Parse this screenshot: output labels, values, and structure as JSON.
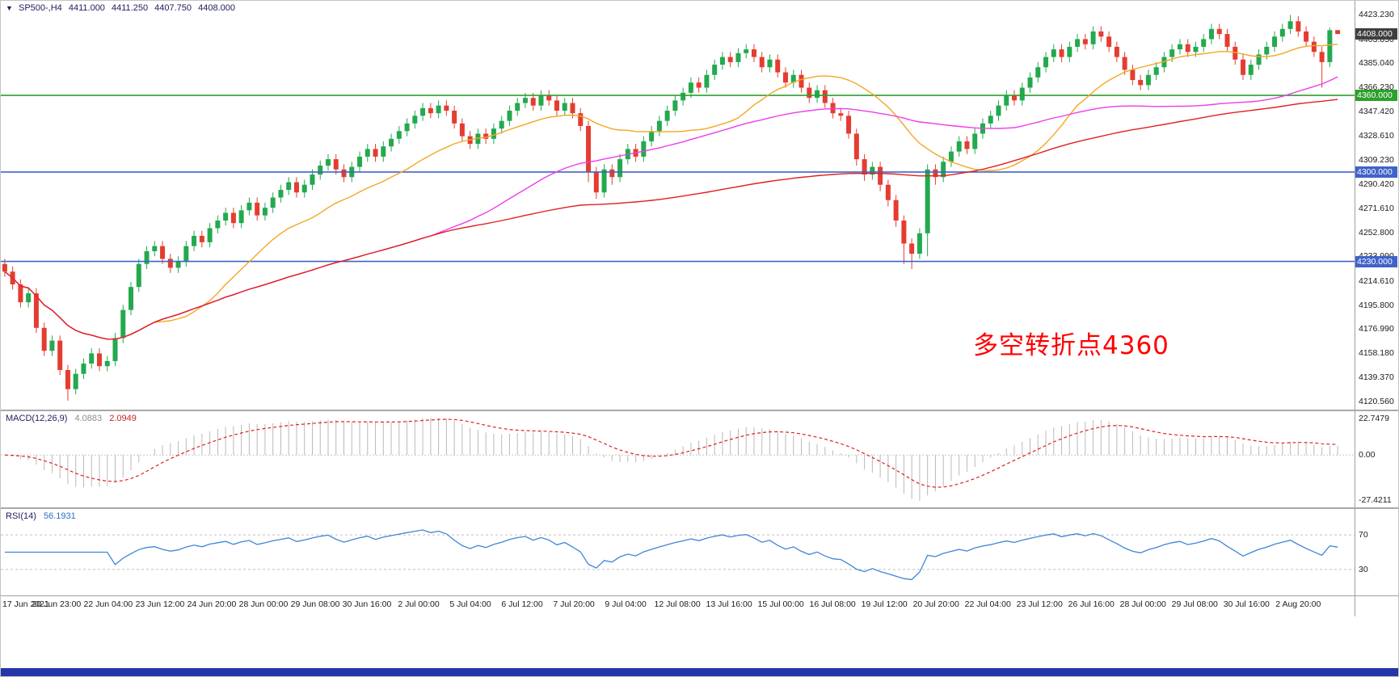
{
  "symbol_bar": {
    "symbol": "SP500-,H4",
    "open": "4411.000",
    "high": "4411.250",
    "low": "4407.750",
    "close": "4408.000"
  },
  "price_axis": {
    "labels": [
      "4423.230",
      "4403.850",
      "4385.040",
      "4366.230",
      "4347.420",
      "4328.610",
      "4309.230",
      "4290.420",
      "4271.610",
      "4252.800",
      "4233.990",
      "4214.610",
      "4195.800",
      "4176.990",
      "4158.180",
      "4139.370",
      "4120.560"
    ],
    "current_badge": {
      "value": "4408.000",
      "price": 4408.0,
      "bg": "#3f3f3f"
    }
  },
  "annotation": {
    "text": "多空转折点4360",
    "color": "#ff0000"
  },
  "macd_panel": {
    "label": "MACD(12,26,9)",
    "value_main": "4.0883",
    "value_signal": "2.0949",
    "axis_top": "22.7479",
    "axis_zero": "0.00",
    "axis_bottom": "-27.4211"
  },
  "rsi_panel": {
    "label": "RSI(14)",
    "value": "56.1931",
    "level_top": "70",
    "level_bottom": "30"
  },
  "time_axis": {
    "labels": [
      "17 Jun 2021",
      "20 Jun 23:00",
      "22 Jun 04:00",
      "23 Jun 12:00",
      "24 Jun 20:00",
      "28 Jun 00:00",
      "29 Jun 08:00",
      "30 Jun 16:00",
      "2 Jul 00:00",
      "5 Jul 04:00",
      "6 Jul 12:00",
      "7 Jul 20:00",
      "9 Jul 04:00",
      "12 Jul 08:00",
      "13 Jul 16:00",
      "15 Jul 00:00",
      "16 Jul 08:00",
      "19 Jul 12:00",
      "20 Jul 20:00",
      "22 Jul 04:00",
      "23 Jul 12:00",
      "26 Jul 16:00",
      "28 Jul 00:00",
      "29 Jul 08:00",
      "30 Jul 16:00",
      "2 Aug 20:00"
    ],
    "bottom_bar_color": "#2337a8"
  },
  "chart_data": {
    "type": "candlestick",
    "symbol": "SP500-",
    "timeframe": "H4",
    "date_range": "17 Jun 2021 - 2 Aug 2021",
    "price_range": [
      4114,
      4434
    ],
    "colors": {
      "up": "#23a94e",
      "down": "#e43d30"
    },
    "horizontal_levels": [
      {
        "price": 4360.0,
        "label": "4360.000",
        "color": "#2ca02c"
      },
      {
        "price": 4300.0,
        "label": "4300.000",
        "color": "#4063c8"
      },
      {
        "price": 4230.0,
        "label": "4230.000",
        "color": "#4063c8"
      }
    ],
    "moving_averages": [
      {
        "period": 20,
        "color": "#f5a623",
        "type": "sma"
      },
      {
        "period": 55,
        "color": "#ec3cec",
        "type": "sma"
      },
      {
        "period": 120,
        "color": "#e02020",
        "type": "sma"
      }
    ],
    "indicators": [
      {
        "type": "MACD",
        "params": [
          12,
          26,
          9
        ],
        "current": [
          4.0883,
          2.0949
        ],
        "axis_range": [
          -27.4211,
          22.7479
        ]
      },
      {
        "type": "RSI",
        "params": [
          14
        ],
        "current": 56.1931,
        "levels": [
          70,
          30
        ]
      }
    ],
    "candles_ohlc": [
      [
        4228,
        4232,
        4218,
        4222
      ],
      [
        4222,
        4226,
        4208,
        4212
      ],
      [
        4212,
        4216,
        4194,
        4198
      ],
      [
        4198,
        4209,
        4194,
        4205
      ],
      [
        4205,
        4209,
        4174,
        4178
      ],
      [
        4178,
        4182,
        4156,
        4160
      ],
      [
        4160,
        4172,
        4156,
        4168
      ],
      [
        4168,
        4172,
        4141,
        4145
      ],
      [
        4145,
        4149,
        4121,
        4130
      ],
      [
        4130,
        4146,
        4126,
        4142
      ],
      [
        4142,
        4154,
        4138,
        4150
      ],
      [
        4150,
        4162,
        4146,
        4158
      ],
      [
        4158,
        4162,
        4144,
        4148
      ],
      [
        4148,
        4156,
        4144,
        4152
      ],
      [
        4152,
        4174,
        4148,
        4170
      ],
      [
        4170,
        4196,
        4166,
        4192
      ],
      [
        4192,
        4214,
        4188,
        4210
      ],
      [
        4210,
        4232,
        4206,
        4228
      ],
      [
        4228,
        4242,
        4224,
        4238
      ],
      [
        4238,
        4246,
        4234,
        4242
      ],
      [
        4242,
        4246,
        4228,
        4232
      ],
      [
        4232,
        4236,
        4221,
        4225
      ],
      [
        4225,
        4234,
        4221,
        4230
      ],
      [
        4230,
        4246,
        4226,
        4242
      ],
      [
        4242,
        4254,
        4238,
        4250
      ],
      [
        4250,
        4254,
        4241,
        4245
      ],
      [
        4245,
        4260,
        4241,
        4256
      ],
      [
        4256,
        4266,
        4252,
        4262
      ],
      [
        4262,
        4272,
        4258,
        4268
      ],
      [
        4268,
        4272,
        4256,
        4260
      ],
      [
        4260,
        4274,
        4256,
        4270
      ],
      [
        4270,
        4280,
        4266,
        4276
      ],
      [
        4276,
        4280,
        4262,
        4266
      ],
      [
        4266,
        4276,
        4262,
        4272
      ],
      [
        4272,
        4284,
        4268,
        4280
      ],
      [
        4280,
        4290,
        4276,
        4286
      ],
      [
        4286,
        4296,
        4282,
        4292
      ],
      [
        4292,
        4296,
        4280,
        4284
      ],
      [
        4284,
        4294,
        4280,
        4290
      ],
      [
        4290,
        4302,
        4286,
        4298
      ],
      [
        4298,
        4309,
        4294,
        4305
      ],
      [
        4305,
        4314,
        4301,
        4310
      ],
      [
        4310,
        4314,
        4298,
        4302
      ],
      [
        4302,
        4306,
        4292,
        4296
      ],
      [
        4296,
        4308,
        4292,
        4304
      ],
      [
        4304,
        4316,
        4300,
        4312
      ],
      [
        4312,
        4322,
        4308,
        4318
      ],
      [
        4318,
        4322,
        4308,
        4312
      ],
      [
        4312,
        4324,
        4308,
        4320
      ],
      [
        4320,
        4330,
        4316,
        4326
      ],
      [
        4326,
        4336,
        4322,
        4332
      ],
      [
        4332,
        4342,
        4328,
        4338
      ],
      [
        4338,
        4348,
        4334,
        4344
      ],
      [
        4344,
        4354,
        4340,
        4350
      ],
      [
        4350,
        4354,
        4342,
        4346
      ],
      [
        4346,
        4356,
        4342,
        4352
      ],
      [
        4352,
        4356,
        4344,
        4348
      ],
      [
        4348,
        4352,
        4334,
        4338
      ],
      [
        4338,
        4342,
        4324,
        4328
      ],
      [
        4328,
        4332,
        4318,
        4322
      ],
      [
        4322,
        4334,
        4318,
        4330
      ],
      [
        4330,
        4334,
        4322,
        4326
      ],
      [
        4326,
        4338,
        4322,
        4334
      ],
      [
        4334,
        4344,
        4330,
        4340
      ],
      [
        4340,
        4352,
        4336,
        4348
      ],
      [
        4348,
        4358,
        4344,
        4354
      ],
      [
        4354,
        4362,
        4350,
        4358
      ],
      [
        4358,
        4362,
        4348,
        4352
      ],
      [
        4352,
        4364,
        4348,
        4360
      ],
      [
        4360,
        4364,
        4352,
        4356
      ],
      [
        4356,
        4360,
        4344,
        4348
      ],
      [
        4348,
        4358,
        4344,
        4354
      ],
      [
        4354,
        4358,
        4342,
        4346
      ],
      [
        4346,
        4350,
        4332,
        4336
      ],
      [
        4336,
        4340,
        4292,
        4300
      ],
      [
        4300,
        4304,
        4279,
        4284
      ],
      [
        4284,
        4306,
        4280,
        4302
      ],
      [
        4302,
        4306,
        4290,
        4296
      ],
      [
        4296,
        4314,
        4292,
        4310
      ],
      [
        4310,
        4322,
        4306,
        4318
      ],
      [
        4318,
        4322,
        4308,
        4312
      ],
      [
        4312,
        4328,
        4308,
        4324
      ],
      [
        4324,
        4336,
        4320,
        4332
      ],
      [
        4332,
        4344,
        4328,
        4340
      ],
      [
        4340,
        4352,
        4336,
        4348
      ],
      [
        4348,
        4360,
        4344,
        4356
      ],
      [
        4356,
        4366,
        4352,
        4362
      ],
      [
        4362,
        4374,
        4358,
        4370
      ],
      [
        4370,
        4374,
        4362,
        4366
      ],
      [
        4366,
        4380,
        4362,
        4376
      ],
      [
        4376,
        4388,
        4372,
        4384
      ],
      [
        4384,
        4394,
        4380,
        4390
      ],
      [
        4390,
        4394,
        4382,
        4386
      ],
      [
        4386,
        4397,
        4382,
        4393
      ],
      [
        4393,
        4400,
        4389,
        4396
      ],
      [
        4396,
        4400,
        4386,
        4390
      ],
      [
        4390,
        4394,
        4378,
        4382
      ],
      [
        4382,
        4392,
        4378,
        4388
      ],
      [
        4388,
        4392,
        4374,
        4378
      ],
      [
        4378,
        4382,
        4366,
        4370
      ],
      [
        4370,
        4380,
        4366,
        4376
      ],
      [
        4376,
        4380,
        4362,
        4366
      ],
      [
        4366,
        4370,
        4354,
        4358
      ],
      [
        4358,
        4368,
        4354,
        4364
      ],
      [
        4364,
        4368,
        4350,
        4354
      ],
      [
        4354,
        4358,
        4342,
        4346
      ],
      [
        4346,
        4350,
        4340,
        4344
      ],
      [
        4344,
        4348,
        4326,
        4330
      ],
      [
        4330,
        4334,
        4305,
        4310
      ],
      [
        4310,
        4314,
        4293,
        4298
      ],
      [
        4298,
        4308,
        4294,
        4304
      ],
      [
        4304,
        4308,
        4285,
        4290
      ],
      [
        4290,
        4294,
        4273,
        4278
      ],
      [
        4278,
        4282,
        4257,
        4262
      ],
      [
        4262,
        4266,
        4228,
        4244
      ],
      [
        4244,
        4248,
        4224,
        4236
      ],
      [
        4236,
        4256,
        4232,
        4252
      ],
      [
        4252,
        4306,
        4234,
        4302
      ],
      [
        4302,
        4306,
        4290,
        4296
      ],
      [
        4296,
        4312,
        4292,
        4308
      ],
      [
        4308,
        4320,
        4304,
        4316
      ],
      [
        4316,
        4328,
        4312,
        4324
      ],
      [
        4324,
        4328,
        4314,
        4318
      ],
      [
        4318,
        4334,
        4314,
        4330
      ],
      [
        4330,
        4342,
        4326,
        4338
      ],
      [
        4338,
        4348,
        4334,
        4344
      ],
      [
        4344,
        4356,
        4340,
        4352
      ],
      [
        4352,
        4364,
        4348,
        4360
      ],
      [
        4360,
        4364,
        4352,
        4356
      ],
      [
        4356,
        4370,
        4352,
        4366
      ],
      [
        4366,
        4378,
        4362,
        4374
      ],
      [
        4374,
        4386,
        4370,
        4382
      ],
      [
        4382,
        4394,
        4378,
        4390
      ],
      [
        4390,
        4400,
        4386,
        4396
      ],
      [
        4396,
        4400,
        4386,
        4390
      ],
      [
        4390,
        4402,
        4386,
        4398
      ],
      [
        4398,
        4408,
        4394,
        4404
      ],
      [
        4404,
        4408,
        4396,
        4400
      ],
      [
        4400,
        4414,
        4396,
        4410
      ],
      [
        4410,
        4414,
        4402,
        4406
      ],
      [
        4406,
        4410,
        4394,
        4398
      ],
      [
        4398,
        4402,
        4386,
        4390
      ],
      [
        4390,
        4394,
        4376,
        4380
      ],
      [
        4380,
        4384,
        4368,
        4372
      ],
      [
        4372,
        4376,
        4364,
        4368
      ],
      [
        4368,
        4380,
        4364,
        4376
      ],
      [
        4376,
        4386,
        4372,
        4382
      ],
      [
        4382,
        4394,
        4378,
        4390
      ],
      [
        4390,
        4400,
        4386,
        4396
      ],
      [
        4396,
        4404,
        4392,
        4400
      ],
      [
        4400,
        4404,
        4390,
        4394
      ],
      [
        4394,
        4402,
        4390,
        4398
      ],
      [
        4398,
        4408,
        4394,
        4404
      ],
      [
        4404,
        4416,
        4400,
        4412
      ],
      [
        4412,
        4416,
        4404,
        4408
      ],
      [
        4408,
        4412,
        4394,
        4398
      ],
      [
        4398,
        4402,
        4384,
        4388
      ],
      [
        4388,
        4392,
        4372,
        4376
      ],
      [
        4376,
        4388,
        4372,
        4384
      ],
      [
        4384,
        4396,
        4380,
        4392
      ],
      [
        4392,
        4402,
        4388,
        4398
      ],
      [
        4398,
        4410,
        4394,
        4406
      ],
      [
        4406,
        4416,
        4402,
        4412
      ],
      [
        4412,
        4423,
        4408,
        4418
      ],
      [
        4418,
        4422,
        4406,
        4410
      ],
      [
        4410,
        4414,
        4398,
        4402
      ],
      [
        4402,
        4406,
        4390,
        4394
      ],
      [
        4394,
        4398,
        4366,
        4386
      ],
      [
        4386,
        4413,
        4382,
        4411
      ],
      [
        4411,
        4411.3,
        4407.8,
        4408
      ]
    ]
  }
}
